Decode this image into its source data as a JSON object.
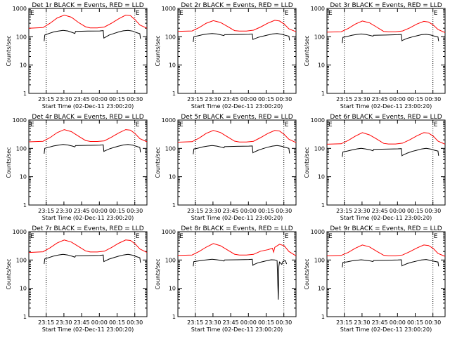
{
  "figure": {
    "ylabel": "Counts/sec",
    "xlabel": "Start Time (02-Dec-11 23:00:20)",
    "x_tick_labels": [
      "23:15",
      "23:30",
      "23:45",
      "00:00",
      "00:15",
      "00:30"
    ],
    "y_tick_labels": [
      "1",
      "10",
      "100",
      "1000"
    ],
    "marker_label": "E",
    "colors": {
      "background": "#ffffff",
      "axes": "#000000",
      "events": "#000000",
      "lld": "#ff0000"
    }
  },
  "chart_data": [
    {
      "type": "line",
      "title": "Det 1r BLACK = Events, RED = LLD",
      "xlabel": "Start Time (02-Dec-11 23:00:20)",
      "ylabel": "Counts/sec",
      "x_unit": "minutes since 23:00:20",
      "xlim": [
        0,
        100
      ],
      "ylim": [
        1,
        1000
      ],
      "yscale": "log",
      "vlines": [
        14.7,
        89.7
      ],
      "e_markers": [
        89.7
      ],
      "series": [
        {
          "name": "LLD",
          "color": "#ff0000",
          "x": [
            0,
            12,
            18,
            24,
            30,
            36,
            42,
            48,
            52,
            58,
            64,
            70,
            76,
            82,
            86,
            90,
            94,
            100
          ],
          "values": [
            200,
            210,
            300,
            460,
            580,
            490,
            320,
            225,
            205,
            205,
            220,
            300,
            430,
            580,
            560,
            400,
            260,
            200
          ]
        },
        {
          "name": "Events",
          "color": "#000000",
          "x": [
            13,
            13.5,
            17,
            21,
            25,
            29,
            33,
            37,
            39,
            39.5,
            50,
            60,
            63,
            63.5,
            64,
            68,
            72,
            76,
            80,
            84,
            88,
            91,
            94,
            94.5
          ],
          "values": [
            70,
            115,
            130,
            148,
            158,
            168,
            160,
            140,
            130,
            155,
            158,
            160,
            165,
            90,
            92,
            115,
            130,
            148,
            162,
            168,
            158,
            140,
            128,
            85
          ]
        }
      ]
    },
    {
      "type": "line",
      "title": "Det 2r BLACK = Events, RED = LLD",
      "xlabel": "Start Time (02-Dec-11 23:00:20)",
      "ylabel": "Counts/sec",
      "x_unit": "minutes since 23:00:20",
      "xlim": [
        0,
        100
      ],
      "ylim": [
        1,
        1000
      ],
      "yscale": "log",
      "vlines": [
        14.7,
        89.7
      ],
      "e_markers": [
        89.7
      ],
      "series": [
        {
          "name": "LLD",
          "color": "#ff0000",
          "x": [
            0,
            12,
            18,
            24,
            30,
            36,
            42,
            48,
            52,
            58,
            64,
            70,
            76,
            82,
            86,
            90,
            94,
            100
          ],
          "values": [
            155,
            160,
            210,
            300,
            370,
            320,
            230,
            165,
            158,
            158,
            170,
            220,
            300,
            380,
            360,
            280,
            190,
            150
          ]
        },
        {
          "name": "Events",
          "color": "#000000",
          "x": [
            13,
            13.5,
            17,
            21,
            25,
            29,
            33,
            37,
            39,
            39.5,
            50,
            60,
            63,
            63.5,
            64,
            68,
            72,
            76,
            80,
            84,
            88,
            91,
            94,
            94.5
          ],
          "values": [
            65,
            100,
            108,
            118,
            125,
            130,
            125,
            115,
            110,
            118,
            120,
            122,
            125,
            80,
            82,
            95,
            105,
            115,
            125,
            130,
            122,
            112,
            105,
            75
          ]
        }
      ]
    },
    {
      "type": "line",
      "title": "Det 3r BLACK = Events, RED = LLD",
      "xlabel": "Start Time (02-Dec-11 23:00:20)",
      "ylabel": "Counts/sec",
      "x_unit": "minutes since 23:00:20",
      "xlim": [
        0,
        100
      ],
      "ylim": [
        1,
        1000
      ],
      "yscale": "log",
      "vlines": [
        14.7,
        89.7
      ],
      "e_markers": [
        89.7
      ],
      "series": [
        {
          "name": "LLD",
          "color": "#ff0000",
          "x": [
            0,
            12,
            18,
            24,
            30,
            36,
            42,
            48,
            52,
            58,
            64,
            70,
            76,
            82,
            86,
            90,
            94,
            100
          ],
          "values": [
            145,
            150,
            195,
            280,
            360,
            310,
            220,
            155,
            150,
            150,
            160,
            205,
            280,
            350,
            330,
            260,
            180,
            140
          ]
        },
        {
          "name": "Events",
          "color": "#000000",
          "x": [
            13,
            13.5,
            17,
            21,
            25,
            29,
            33,
            37,
            39,
            39.5,
            50,
            60,
            63,
            63.5,
            64,
            68,
            72,
            76,
            80,
            84,
            88,
            91,
            94,
            94.5
          ],
          "values": [
            60,
            95,
            102,
            112,
            120,
            125,
            120,
            110,
            105,
            112,
            115,
            118,
            120,
            72,
            75,
            88,
            98,
            108,
            118,
            122,
            115,
            105,
            98,
            70
          ]
        }
      ]
    },
    {
      "type": "line",
      "title": "Det 4r BLACK = Events, RED = LLD",
      "xlabel": "Start Time (02-Dec-11 23:00:20)",
      "ylabel": "Counts/sec",
      "x_unit": "minutes since 23:00:20",
      "xlim": [
        0,
        100
      ],
      "ylim": [
        1,
        1000
      ],
      "yscale": "log",
      "vlines": [
        14.7,
        89.7
      ],
      "e_markers": [
        89.7
      ],
      "series": [
        {
          "name": "LLD",
          "color": "#ff0000",
          "x": [
            0,
            12,
            18,
            24,
            30,
            36,
            42,
            48,
            52,
            58,
            64,
            70,
            76,
            82,
            86,
            90,
            94,
            100
          ],
          "values": [
            170,
            178,
            240,
            360,
            460,
            390,
            270,
            190,
            175,
            175,
            185,
            250,
            350,
            460,
            440,
            330,
            220,
            170
          ]
        },
        {
          "name": "Events",
          "color": "#000000",
          "x": [
            13,
            13.5,
            17,
            21,
            25,
            29,
            33,
            37,
            39,
            39.5,
            50,
            60,
            63,
            63.5,
            64,
            68,
            72,
            76,
            80,
            84,
            88,
            91,
            94,
            94.5
          ],
          "values": [
            65,
            100,
            110,
            122,
            130,
            138,
            132,
            120,
            112,
            125,
            128,
            130,
            133,
            78,
            80,
            95,
            108,
            120,
            132,
            138,
            130,
            118,
            108,
            72
          ]
        }
      ]
    },
    {
      "type": "line",
      "title": "Det 5r BLACK = Events, RED = LLD",
      "xlabel": "Start Time (02-Dec-11 23:00:20)",
      "ylabel": "Counts/sec",
      "x_unit": "minutes since 23:00:20",
      "xlim": [
        0,
        100
      ],
      "ylim": [
        1,
        1000
      ],
      "yscale": "log",
      "vlines": [
        14.7,
        89.7
      ],
      "e_markers": [
        89.7
      ],
      "series": [
        {
          "name": "LLD",
          "color": "#ff0000",
          "x": [
            0,
            12,
            18,
            24,
            30,
            36,
            42,
            48,
            52,
            58,
            64,
            70,
            76,
            82,
            86,
            90,
            94,
            100
          ],
          "values": [
            165,
            172,
            230,
            340,
            430,
            365,
            255,
            180,
            168,
            168,
            178,
            240,
            335,
            430,
            410,
            310,
            210,
            160
          ]
        },
        {
          "name": "Events",
          "color": "#000000",
          "x": [
            13,
            13.5,
            17,
            21,
            25,
            29,
            33,
            37,
            39,
            39.5,
            50,
            60,
            63,
            63.5,
            64,
            68,
            72,
            76,
            80,
            84,
            88,
            91,
            94,
            94.5
          ],
          "values": [
            62,
            95,
            102,
            112,
            120,
            126,
            120,
            110,
            104,
            115,
            118,
            120,
            122,
            70,
            72,
            86,
            98,
            110,
            120,
            126,
            118,
            108,
            100,
            66
          ]
        }
      ]
    },
    {
      "type": "line",
      "title": "Det 6r BLACK = Events, RED = LLD",
      "xlabel": "Start Time (02-Dec-11 23:00:20)",
      "ylabel": "Counts/sec",
      "x_unit": "minutes since 23:00:20",
      "xlim": [
        0,
        100
      ],
      "ylim": [
        1,
        1000
      ],
      "yscale": "log",
      "vlines": [
        14.7,
        89.7
      ],
      "e_markers": [
        89.7
      ],
      "series": [
        {
          "name": "LLD",
          "color": "#ff0000",
          "x": [
            0,
            12,
            18,
            24,
            30,
            36,
            42,
            48,
            52,
            58,
            64,
            70,
            76,
            82,
            86,
            90,
            94,
            100
          ],
          "values": [
            140,
            145,
            190,
            270,
            360,
            300,
            215,
            150,
            143,
            143,
            153,
            200,
            275,
            360,
            345,
            270,
            180,
            140
          ]
        },
        {
          "name": "Events",
          "color": "#000000",
          "x": [
            13,
            13.5,
            17,
            21,
            25,
            29,
            33,
            37,
            39,
            39.5,
            50,
            60,
            63,
            63.5,
            64,
            68,
            72,
            76,
            80,
            84,
            88,
            91,
            94,
            94.5
          ],
          "values": [
            50,
            75,
            80,
            88,
            95,
            100,
            95,
            88,
            82,
            92,
            94,
            96,
            98,
            55,
            57,
            68,
            78,
            86,
            95,
            100,
            94,
            86,
            80,
            55
          ]
        }
      ]
    },
    {
      "type": "line",
      "title": "Det 7r BLACK = Events, RED = LLD",
      "xlabel": "Start Time (02-Dec-11 23:00:20)",
      "ylabel": "Counts/sec",
      "x_unit": "minutes since 23:00:20",
      "xlim": [
        0,
        100
      ],
      "ylim": [
        1,
        1000
      ],
      "yscale": "log",
      "vlines": [
        14.7,
        89.7
      ],
      "e_markers": [
        89.7
      ],
      "series": [
        {
          "name": "LLD",
          "color": "#ff0000",
          "x": [
            0,
            12,
            18,
            24,
            30,
            36,
            42,
            48,
            52,
            58,
            64,
            70,
            76,
            82,
            86,
            90,
            94,
            100
          ],
          "values": [
            185,
            195,
            270,
            400,
            510,
            430,
            300,
            210,
            192,
            192,
            205,
            275,
            390,
            510,
            490,
            370,
            245,
            185
          ]
        },
        {
          "name": "Events",
          "color": "#000000",
          "x": [
            13,
            13.5,
            17,
            21,
            25,
            29,
            33,
            37,
            39,
            39.5,
            50,
            60,
            63,
            63.5,
            64,
            68,
            72,
            76,
            80,
            84,
            88,
            91,
            94,
            94.5
          ],
          "values": [
            72,
            110,
            122,
            138,
            150,
            158,
            150,
            135,
            125,
            140,
            143,
            146,
            150,
            88,
            90,
            108,
            122,
            136,
            150,
            158,
            148,
            132,
            120,
            80
          ]
        }
      ]
    },
    {
      "type": "line",
      "title": "Det 8r BLACK = Events, RED = LLD",
      "xlabel": "Start Time (02-Dec-11 23:00:20)",
      "ylabel": "Counts/sec",
      "x_unit": "minutes since 23:00:20",
      "xlim": [
        0,
        100
      ],
      "ylim": [
        1,
        1000
      ],
      "yscale": "log",
      "vlines": [
        14.7,
        89.7
      ],
      "e_markers": [
        89.7
      ],
      "series": [
        {
          "name": "LLD",
          "color": "#ff0000",
          "x": [
            0,
            12,
            18,
            24,
            30,
            36,
            42,
            48,
            52,
            58,
            64,
            70,
            76,
            80,
            81,
            82,
            86,
            90,
            94,
            100
          ],
          "values": [
            145,
            150,
            200,
            285,
            380,
            320,
            225,
            160,
            150,
            150,
            158,
            205,
            230,
            260,
            190,
            280,
            360,
            320,
            200,
            140
          ]
        },
        {
          "name": "Events",
          "color": "#000000",
          "x": [
            13,
            13.5,
            17,
            21,
            25,
            29,
            33,
            37,
            39,
            39.5,
            50,
            60,
            63,
            63.5,
            64,
            68,
            72,
            76,
            79,
            82,
            84,
            85,
            85.5,
            86,
            88,
            89,
            91,
            92
          ],
          "values": [
            60,
            88,
            92,
            98,
            102,
            106,
            102,
            96,
            92,
            100,
            102,
            104,
            106,
            65,
            68,
            80,
            88,
            96,
            102,
            100,
            95,
            4,
            60,
            85,
            70,
            90,
            95,
            72
          ]
        }
      ]
    },
    {
      "type": "line",
      "title": "Det 9r BLACK = Events, RED = LLD",
      "xlabel": "Start Time (02-Dec-11 23:00:20)",
      "ylabel": "Counts/sec",
      "x_unit": "minutes since 23:00:20",
      "xlim": [
        0,
        100
      ],
      "ylim": [
        1,
        1000
      ],
      "yscale": "log",
      "vlines": [
        14.7,
        89.7
      ],
      "e_markers": [
        89.7
      ],
      "series": [
        {
          "name": "LLD",
          "color": "#ff0000",
          "x": [
            0,
            12,
            18,
            24,
            30,
            36,
            42,
            48,
            52,
            58,
            64,
            70,
            76,
            82,
            86,
            90,
            94,
            100
          ],
          "values": [
            140,
            145,
            185,
            260,
            340,
            290,
            205,
            148,
            140,
            140,
            150,
            195,
            265,
            340,
            325,
            255,
            170,
            135
          ]
        },
        {
          "name": "Events",
          "color": "#000000",
          "x": [
            13,
            13.5,
            17,
            21,
            25,
            29,
            33,
            37,
            39,
            39.5,
            50,
            60,
            63,
            63.5,
            64,
            68,
            72,
            76,
            80,
            84,
            88,
            91,
            94,
            94.5
          ],
          "values": [
            55,
            82,
            86,
            93,
            98,
            102,
            98,
            92,
            88,
            96,
            98,
            100,
            102,
            62,
            64,
            75,
            84,
            92,
            100,
            104,
            96,
            90,
            85,
            60
          ]
        }
      ]
    }
  ]
}
